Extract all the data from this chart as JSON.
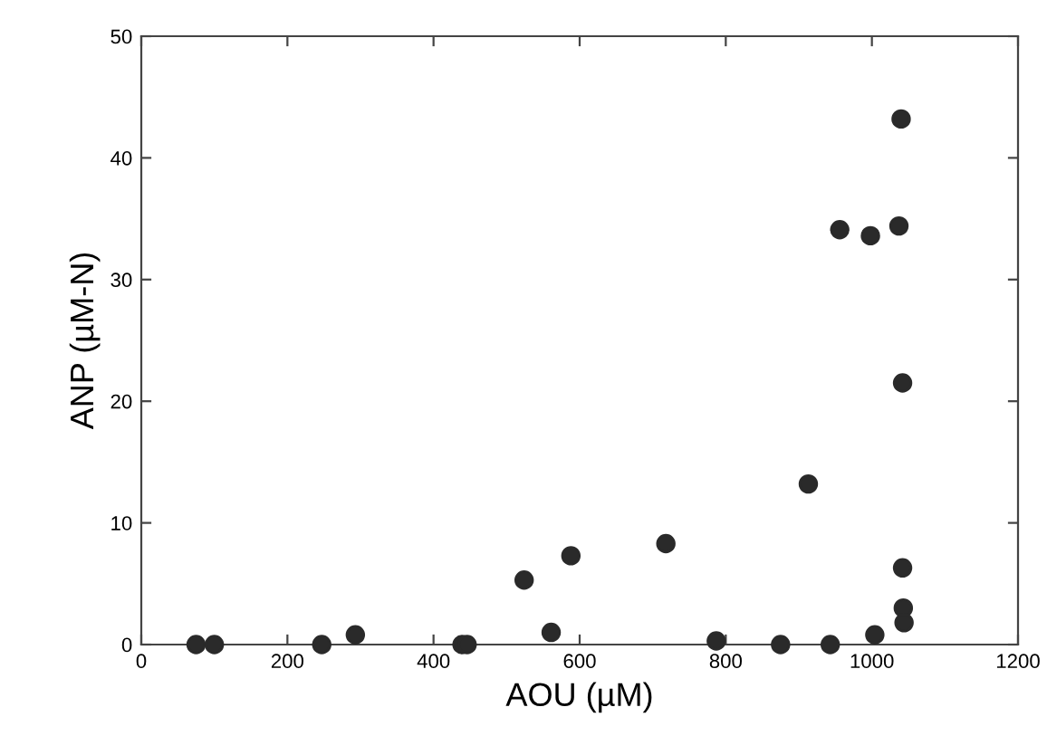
{
  "chart_data": {
    "type": "scatter",
    "xlabel": "AOU (µM)",
    "ylabel": "ANP (µM-N)",
    "xlim": [
      0,
      1200
    ],
    "xticks": [
      0,
      200,
      400,
      600,
      800,
      1000,
      1200
    ],
    "ylim": [
      0,
      50
    ],
    "yticks": [
      0,
      10,
      20,
      30,
      40,
      50
    ],
    "grid": false,
    "marker": "circle",
    "series": [
      {
        "color": "#2a2a2a",
        "x": [
          75,
          100,
          247,
          293,
          439,
          446,
          524,
          561,
          588,
          718,
          781,
          787,
          875,
          943,
          1004,
          913,
          1042,
          1042,
          1043,
          1044,
          956,
          998,
          1037,
          1040
        ],
        "values": [
          0,
          0,
          0,
          0.8,
          0,
          0,
          5.3,
          1.0,
          7.3,
          8.3,
          null,
          0.3,
          0,
          0,
          0.8,
          13.2,
          21.5,
          6.3,
          3.0,
          1.8,
          34.1,
          33.6,
          34.4,
          43.2
        ]
      }
    ]
  }
}
